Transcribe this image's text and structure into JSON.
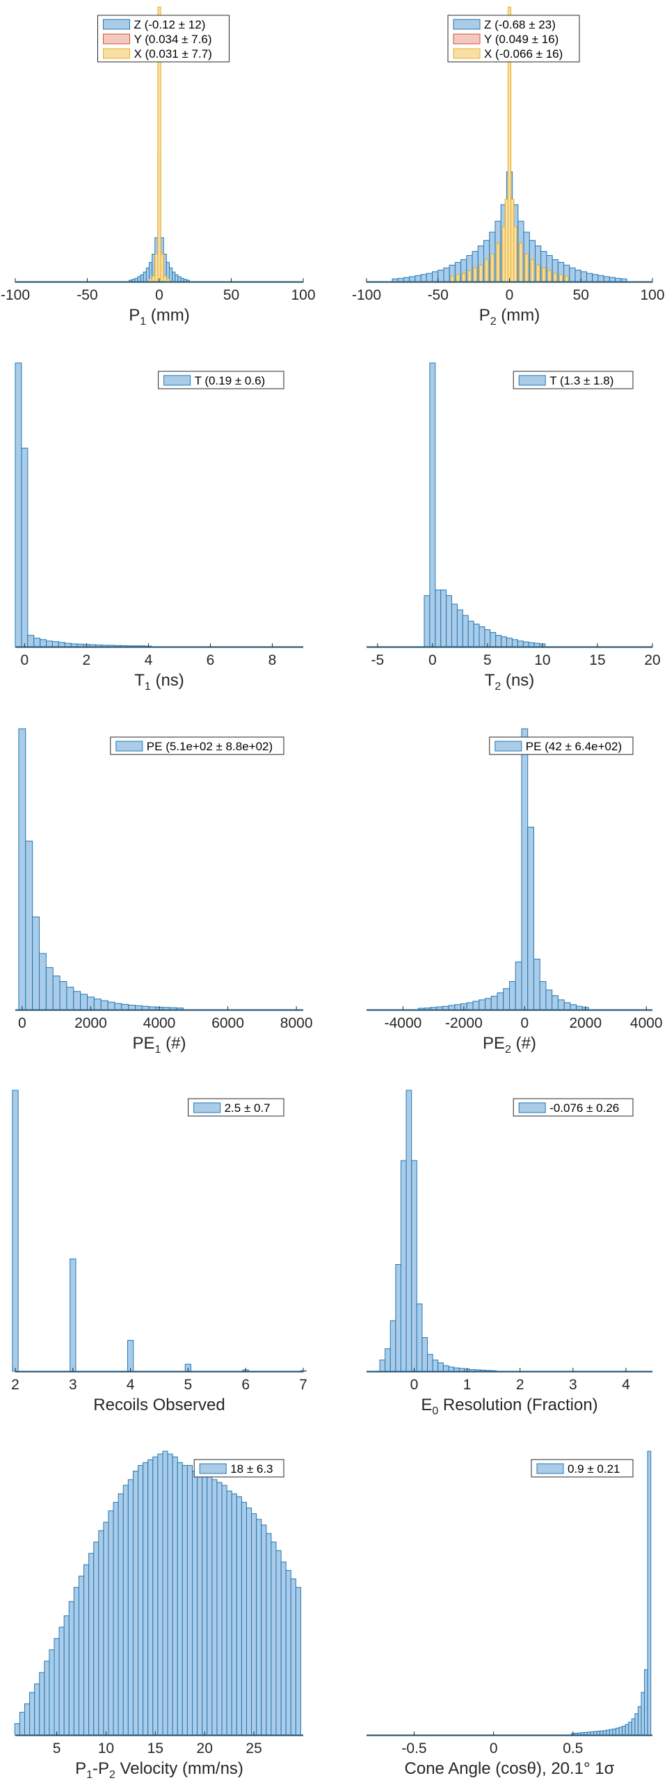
{
  "colors": {
    "blue_fill": "#abcce8",
    "blue_edge": "#1f77b4",
    "red_fill": "#f2c9c2",
    "red_edge": "#d95319",
    "yellow_fill": "#f7dfa6",
    "yellow_edge": "#edb120",
    "axis": "#262626",
    "legend_border": "#262626"
  },
  "chart_data": [
    {
      "id": "p1",
      "type": "bar",
      "xlabel": "P1 (mm)",
      "xlim": [
        -100,
        100
      ],
      "xticks": [
        -100,
        -50,
        0,
        50,
        100
      ],
      "ylim": [
        0,
        1.0
      ],
      "legend_position": "top-center",
      "legend": [
        {
          "label": "Z (-0.12 ± 12)",
          "color": "blue"
        },
        {
          "label": "Y (0.034 ± 7.6)",
          "color": "red"
        },
        {
          "label": "X (0.031 ± 7.7)",
          "color": "yellow"
        }
      ],
      "series": [
        {
          "name": "Z",
          "color": "blue",
          "bin_width": 2,
          "x": [
            -20,
            -18,
            -16,
            -14,
            -12,
            -10,
            -8,
            -6,
            -4,
            -2,
            0,
            2,
            4,
            6,
            8,
            10,
            12,
            14,
            16,
            18,
            20
          ],
          "values": [
            0.005,
            0.008,
            0.012,
            0.018,
            0.025,
            0.035,
            0.05,
            0.07,
            0.1,
            0.16,
            0.45,
            0.16,
            0.1,
            0.07,
            0.05,
            0.035,
            0.025,
            0.018,
            0.012,
            0.008,
            0.005
          ]
        },
        {
          "name": "Y",
          "color": "red",
          "bin_width": 2,
          "x": [
            -6,
            -4,
            -2,
            0,
            2,
            4,
            6
          ],
          "values": [
            0.01,
            0.02,
            0.1,
            0.8,
            0.1,
            0.02,
            0.01
          ]
        },
        {
          "name": "X",
          "color": "yellow",
          "bin_width": 2,
          "x": [
            -6,
            -4,
            -2,
            0,
            2,
            4,
            6
          ],
          "values": [
            0.01,
            0.02,
            0.1,
            1.0,
            0.1,
            0.02,
            0.01
          ]
        }
      ]
    },
    {
      "id": "p2",
      "type": "bar",
      "xlabel": "P2 (mm)",
      "xlim": [
        -100,
        100
      ],
      "xticks": [
        -100,
        -50,
        0,
        50,
        100
      ],
      "ylim": [
        0,
        1.0
      ],
      "legend_position": "top-center",
      "legend": [
        {
          "label": "Z (-0.68 ± 23)",
          "color": "blue"
        },
        {
          "label": "Y (0.049 ± 16)",
          "color": "red"
        },
        {
          "label": "X (-0.066 ± 16)",
          "color": "yellow"
        }
      ],
      "series": [
        {
          "name": "Z",
          "color": "blue",
          "bin_width": 4,
          "x": [
            -80,
            -76,
            -72,
            -68,
            -64,
            -60,
            -56,
            -52,
            -48,
            -44,
            -40,
            -36,
            -32,
            -28,
            -24,
            -20,
            -16,
            -12,
            -8,
            -4,
            0,
            4,
            8,
            12,
            16,
            20,
            24,
            28,
            32,
            36,
            40,
            44,
            48,
            52,
            56,
            60,
            64,
            68,
            72,
            76,
            80
          ],
          "values": [
            0.01,
            0.012,
            0.015,
            0.018,
            0.022,
            0.026,
            0.03,
            0.036,
            0.042,
            0.05,
            0.06,
            0.07,
            0.08,
            0.095,
            0.11,
            0.13,
            0.15,
            0.18,
            0.22,
            0.28,
            0.4,
            0.28,
            0.22,
            0.18,
            0.15,
            0.13,
            0.11,
            0.095,
            0.08,
            0.07,
            0.06,
            0.05,
            0.042,
            0.036,
            0.03,
            0.026,
            0.022,
            0.018,
            0.015,
            0.012,
            0.01
          ]
        },
        {
          "name": "Y",
          "color": "red",
          "bin_width": 2,
          "x": [
            -40,
            -36,
            -32,
            -28,
            -24,
            -20,
            -16,
            -12,
            -8,
            -4,
            -2,
            0,
            2,
            4,
            8,
            12,
            16,
            20,
            24,
            28,
            32,
            36,
            40
          ],
          "values": [
            0.02,
            0.025,
            0.03,
            0.04,
            0.05,
            0.06,
            0.08,
            0.1,
            0.14,
            0.2,
            0.3,
            0.75,
            0.3,
            0.2,
            0.14,
            0.1,
            0.08,
            0.06,
            0.05,
            0.04,
            0.03,
            0.025,
            0.02
          ]
        },
        {
          "name": "X",
          "color": "yellow",
          "bin_width": 2,
          "x": [
            -40,
            -36,
            -32,
            -28,
            -24,
            -20,
            -16,
            -12,
            -8,
            -4,
            -2,
            0,
            2,
            4,
            8,
            12,
            16,
            20,
            24,
            28,
            32,
            36,
            40
          ],
          "values": [
            0.02,
            0.025,
            0.03,
            0.04,
            0.05,
            0.06,
            0.08,
            0.1,
            0.14,
            0.2,
            0.3,
            1.0,
            0.3,
            0.2,
            0.14,
            0.1,
            0.08,
            0.06,
            0.05,
            0.04,
            0.03,
            0.025,
            0.02
          ]
        }
      ]
    },
    {
      "id": "t1",
      "type": "bar",
      "xlabel": "T1 (ns)",
      "xlim": [
        -0.3,
        9
      ],
      "xticks": [
        0,
        2,
        4,
        6,
        8
      ],
      "ylim": [
        0,
        1.0
      ],
      "legend_position": "top-right",
      "legend": [
        {
          "label": "T (0.19 ± 0.6)",
          "color": "blue"
        }
      ],
      "series": [
        {
          "name": "T",
          "color": "blue",
          "bin_width": 0.2,
          "x": [
            -0.2,
            0.0,
            0.2,
            0.4,
            0.6,
            0.8,
            1.0,
            1.2,
            1.4,
            1.6,
            1.8,
            2.0,
            2.2,
            2.4,
            2.6,
            2.8,
            3.0,
            3.2,
            3.4,
            3.6,
            3.8,
            4.0
          ],
          "values": [
            1.0,
            0.7,
            0.04,
            0.03,
            0.025,
            0.02,
            0.018,
            0.015,
            0.012,
            0.01,
            0.009,
            0.008,
            0.007,
            0.006,
            0.005,
            0.005,
            0.004,
            0.004,
            0.003,
            0.003,
            0.003,
            0.002
          ]
        }
      ]
    },
    {
      "id": "t2",
      "type": "bar",
      "xlabel": "T2 (ns)",
      "xlim": [
        -6,
        20
      ],
      "xticks": [
        -5,
        0,
        5,
        10,
        15,
        20
      ],
      "ylim": [
        0,
        1.0
      ],
      "legend_position": "top-right",
      "legend": [
        {
          "label": "T (1.3 ± 1.8)",
          "color": "blue"
        }
      ],
      "series": [
        {
          "name": "T",
          "color": "blue",
          "bin_width": 0.5,
          "x": [
            -0.5,
            0.0,
            0.5,
            1.0,
            1.5,
            2.0,
            2.5,
            3.0,
            3.5,
            4.0,
            4.5,
            5.0,
            5.5,
            6.0,
            6.5,
            7.0,
            7.5,
            8.0,
            8.5,
            9.0,
            9.5,
            10.0
          ],
          "values": [
            0.18,
            1.0,
            0.2,
            0.2,
            0.18,
            0.15,
            0.13,
            0.11,
            0.09,
            0.08,
            0.07,
            0.06,
            0.05,
            0.04,
            0.035,
            0.03,
            0.025,
            0.02,
            0.017,
            0.014,
            0.012,
            0.01
          ]
        }
      ]
    },
    {
      "id": "pe1",
      "type": "bar",
      "xlabel": "PE1 (#)",
      "xlim": [
        -200,
        8200
      ],
      "xticks": [
        0,
        2000,
        4000,
        6000,
        8000
      ],
      "ylim": [
        0,
        1.0
      ],
      "legend_position": "top-right",
      "legend": [
        {
          "label": "PE (5.1e+02 ± 8.8e+02)",
          "color": "blue"
        }
      ],
      "series": [
        {
          "name": "PE",
          "color": "blue",
          "bin_width": 200,
          "x": [
            0,
            200,
            400,
            600,
            800,
            1000,
            1200,
            1400,
            1600,
            1800,
            2000,
            2200,
            2400,
            2600,
            2800,
            3000,
            3200,
            3400,
            3600,
            3800,
            4000,
            4200,
            4400,
            4600
          ],
          "values": [
            1.0,
            0.6,
            0.33,
            0.2,
            0.15,
            0.12,
            0.1,
            0.08,
            0.065,
            0.055,
            0.045,
            0.038,
            0.032,
            0.027,
            0.022,
            0.019,
            0.016,
            0.014,
            0.012,
            0.01,
            0.009,
            0.008,
            0.007,
            0.006
          ]
        }
      ]
    },
    {
      "id": "pe2",
      "type": "bar",
      "xlabel": "PE2 (#)",
      "xlim": [
        -5200,
        4200
      ],
      "xticks": [
        -4000,
        -2000,
        0,
        2000,
        4000
      ],
      "ylim": [
        0,
        1.0
      ],
      "legend_position": "top-right",
      "legend": [
        {
          "label": "PE (42 ± 6.4e+02)",
          "color": "blue"
        }
      ],
      "series": [
        {
          "name": "PE",
          "color": "blue",
          "bin_width": 200,
          "x": [
            -3400,
            -3200,
            -3000,
            -2800,
            -2600,
            -2400,
            -2200,
            -2000,
            -1800,
            -1600,
            -1400,
            -1200,
            -1000,
            -800,
            -600,
            -400,
            -200,
            0,
            200,
            400,
            600,
            800,
            1000,
            1200,
            1400,
            1600,
            1800,
            2000
          ],
          "values": [
            0.005,
            0.006,
            0.008,
            0.01,
            0.012,
            0.015,
            0.018,
            0.021,
            0.025,
            0.03,
            0.035,
            0.04,
            0.048,
            0.06,
            0.075,
            0.1,
            0.17,
            1.0,
            0.65,
            0.18,
            0.1,
            0.07,
            0.05,
            0.035,
            0.025,
            0.018,
            0.012,
            0.008
          ]
        }
      ]
    },
    {
      "id": "recoils",
      "type": "bar",
      "xlabel": "Recoils Observed",
      "xlim": [
        2,
        7
      ],
      "xticks": [
        2,
        3,
        4,
        5,
        6,
        7
      ],
      "ylim": [
        0,
        1.0
      ],
      "legend_position": "top-right",
      "legend": [
        {
          "label": "2.5 ± 0.7",
          "color": "blue"
        }
      ],
      "series": [
        {
          "name": "recoils",
          "color": "blue",
          "bin_width": 0.1,
          "x": [
            2.0,
            3.0,
            4.0,
            5.0,
            6.0,
            7.0
          ],
          "values": [
            1.0,
            0.4,
            0.11,
            0.025,
            0.005,
            0.002
          ]
        }
      ]
    },
    {
      "id": "e0",
      "type": "bar",
      "xlabel": "E0 Resolution (Fraction)",
      "xlim": [
        -0.9,
        4.5
      ],
      "xticks": [
        0,
        1,
        2,
        3,
        4
      ],
      "ylim": [
        0,
        1.0
      ],
      "legend_position": "top-right",
      "legend": [
        {
          "label": "-0.076 ± 0.26",
          "color": "blue"
        }
      ],
      "series": [
        {
          "name": "E0",
          "color": "blue",
          "bin_width": 0.1,
          "x": [
            -0.6,
            -0.5,
            -0.4,
            -0.3,
            -0.2,
            -0.1,
            0.0,
            0.1,
            0.2,
            0.3,
            0.4,
            0.5,
            0.6,
            0.7,
            0.8,
            0.9,
            1.0,
            1.1,
            1.2,
            1.3,
            1.4,
            1.5
          ],
          "values": [
            0.04,
            0.08,
            0.18,
            0.38,
            0.75,
            1.0,
            0.75,
            0.24,
            0.12,
            0.06,
            0.04,
            0.03,
            0.02,
            0.015,
            0.012,
            0.01,
            0.008,
            0.006,
            0.005,
            0.004,
            0.003,
            0.002
          ]
        }
      ]
    },
    {
      "id": "vel",
      "type": "bar",
      "xlabel": "P1-P2 Velocity (mm/ns)",
      "xlim": [
        0.8,
        30
      ],
      "xticks": [
        5,
        10,
        15,
        20,
        25
      ],
      "ylim": [
        0,
        1.0
      ],
      "legend_position": "top-right",
      "legend": [
        {
          "label": "18 ± 6.3",
          "color": "blue"
        }
      ],
      "series": [
        {
          "name": "vel",
          "color": "blue",
          "bin_width": 0.5,
          "x": [
            1,
            1.5,
            2,
            2.5,
            3,
            3.5,
            4,
            4.5,
            5,
            5.5,
            6,
            6.5,
            7,
            7.5,
            8,
            8.5,
            9,
            9.5,
            10,
            10.5,
            11,
            11.5,
            12,
            12.5,
            13,
            13.5,
            14,
            14.5,
            15,
            15.5,
            16,
            16.5,
            17,
            17.5,
            18,
            18.5,
            19,
            19.5,
            20,
            20.5,
            21,
            21.5,
            22,
            22.5,
            23,
            23.5,
            24,
            24.5,
            25,
            25.5,
            26,
            26.5,
            27,
            27.5,
            28,
            28.5,
            29,
            29.5
          ],
          "values": [
            0.04,
            0.08,
            0.11,
            0.15,
            0.18,
            0.22,
            0.26,
            0.3,
            0.34,
            0.38,
            0.42,
            0.47,
            0.52,
            0.56,
            0.6,
            0.64,
            0.68,
            0.72,
            0.75,
            0.79,
            0.82,
            0.85,
            0.88,
            0.9,
            0.93,
            0.95,
            0.96,
            0.97,
            0.98,
            0.99,
            1.0,
            0.99,
            0.98,
            0.96,
            0.95,
            0.95,
            0.93,
            0.92,
            0.92,
            0.91,
            0.9,
            0.89,
            0.88,
            0.86,
            0.85,
            0.84,
            0.82,
            0.8,
            0.78,
            0.76,
            0.74,
            0.71,
            0.68,
            0.65,
            0.61,
            0.58,
            0.55,
            0.52
          ]
        }
      ]
    },
    {
      "id": "cone",
      "type": "bar",
      "xlabel": "Cone Angle (cosθ), 20.1° 1σ",
      "xlim": [
        -0.8,
        1.0
      ],
      "xticks": [
        -0.5,
        0,
        0.5
      ],
      "ylim": [
        0,
        1.0
      ],
      "legend_position": "top-right",
      "legend": [
        {
          "label": "0.9 ± 0.21",
          "color": "blue"
        }
      ],
      "series": [
        {
          "name": "cone",
          "color": "blue",
          "bin_width": 0.02,
          "x": [
            0.5,
            0.52,
            0.54,
            0.56,
            0.58,
            0.6,
            0.62,
            0.64,
            0.66,
            0.68,
            0.7,
            0.72,
            0.74,
            0.76,
            0.78,
            0.8,
            0.82,
            0.84,
            0.86,
            0.88,
            0.9,
            0.92,
            0.94,
            0.96,
            0.98
          ],
          "values": [
            0.005,
            0.006,
            0.007,
            0.008,
            0.009,
            0.01,
            0.011,
            0.012,
            0.013,
            0.014,
            0.015,
            0.017,
            0.019,
            0.021,
            0.024,
            0.027,
            0.031,
            0.037,
            0.045,
            0.057,
            0.075,
            0.1,
            0.15,
            0.23,
            1.0
          ]
        }
      ]
    }
  ]
}
